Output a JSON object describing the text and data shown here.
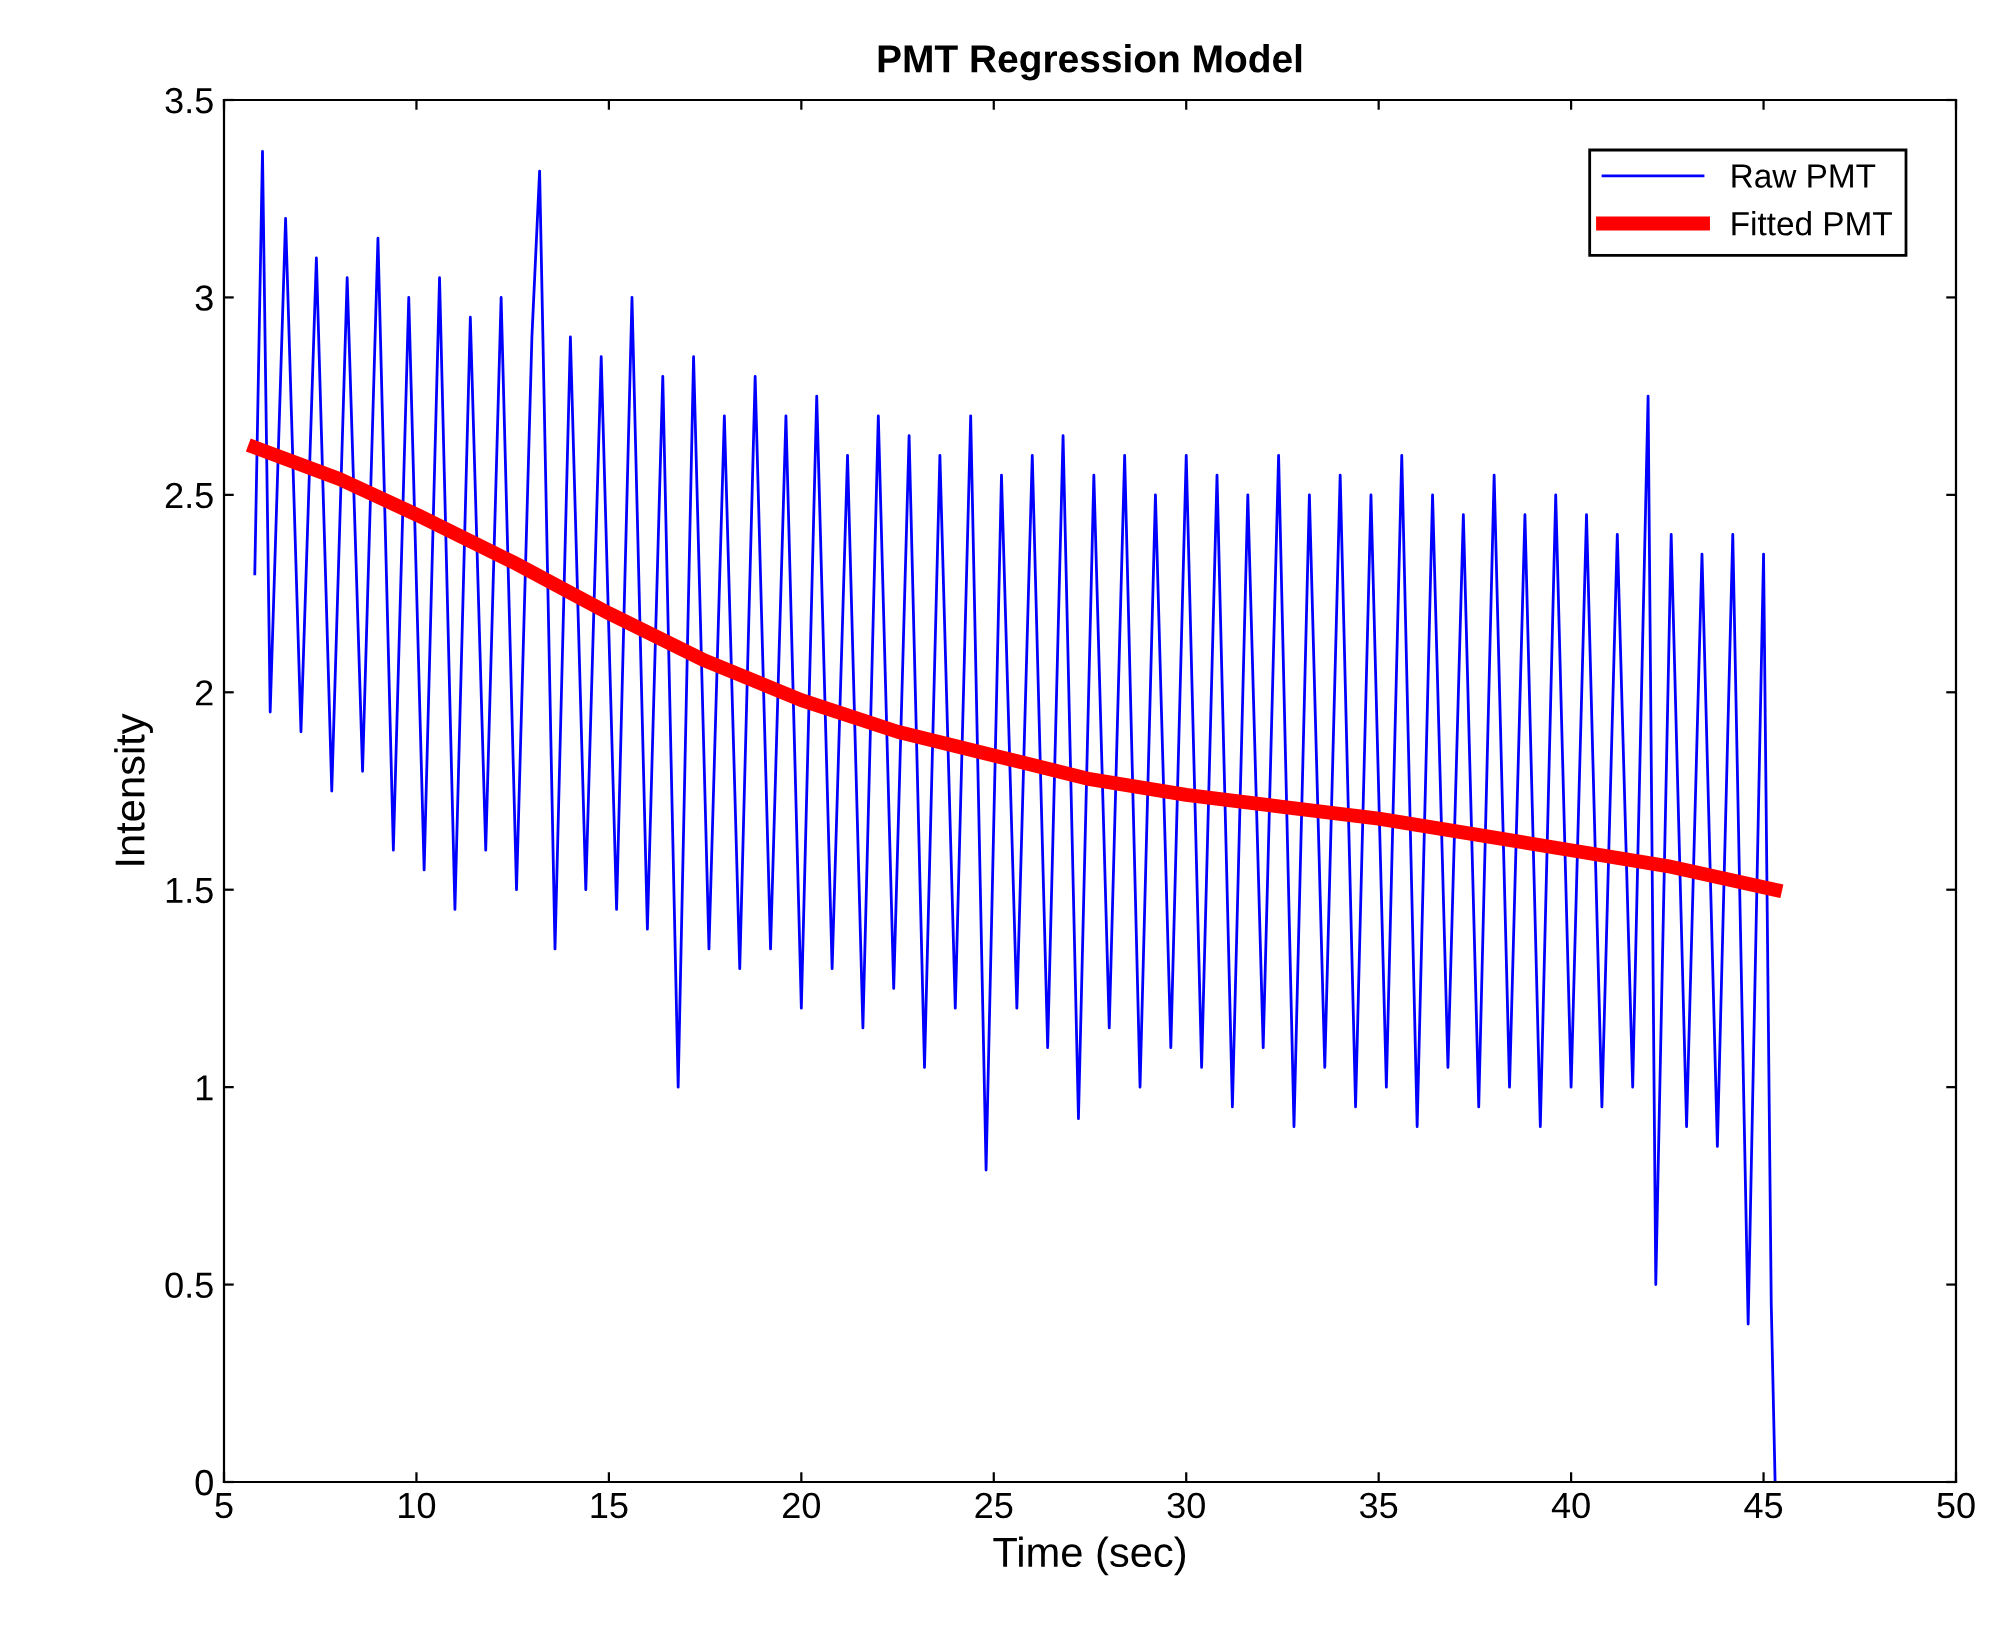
{
  "chart_data": {
    "type": "line",
    "title": "PMT Regression Model",
    "xlabel": "Time (sec)",
    "ylabel": "Intensity",
    "xlim": [
      5,
      50
    ],
    "xticks": [
      5,
      10,
      15,
      20,
      25,
      30,
      35,
      40,
      45,
      50
    ],
    "ylim": [
      0,
      3.5
    ],
    "yticks": [
      0,
      0.5,
      1,
      1.5,
      2,
      2.5,
      3,
      3.5
    ],
    "grid": false,
    "legend": "top right",
    "line_style": "solid",
    "marker": "none",
    "series": [
      {
        "name": "Raw PMT",
        "color": "#0000ff",
        "x": [
          5.8,
          6.0,
          6.2,
          6.6,
          7.0,
          7.4,
          7.8,
          8.2,
          8.6,
          9.0,
          9.4,
          9.8,
          10.2,
          10.6,
          11.0,
          11.4,
          11.8,
          12.2,
          12.6,
          13.0,
          13.2,
          13.6,
          14.0,
          14.4,
          14.8,
          15.2,
          15.6,
          16.0,
          16.4,
          16.8,
          17.2,
          17.6,
          18.0,
          18.4,
          18.8,
          19.2,
          19.6,
          20.0,
          20.4,
          20.8,
          21.2,
          21.6,
          22.0,
          22.4,
          22.8,
          23.2,
          23.6,
          24.0,
          24.4,
          24.8,
          25.2,
          25.6,
          26.0,
          26.4,
          26.8,
          27.2,
          27.6,
          28.0,
          28.4,
          28.8,
          29.2,
          29.6,
          30.0,
          30.4,
          30.8,
          31.2,
          31.6,
          32.0,
          32.4,
          32.8,
          33.2,
          33.6,
          34.0,
          34.4,
          34.8,
          35.2,
          35.6,
          36.0,
          36.4,
          36.8,
          37.2,
          37.6,
          38.0,
          38.4,
          38.8,
          39.2,
          39.6,
          40.0,
          40.4,
          40.8,
          41.2,
          41.6,
          42.0,
          42.2,
          42.6,
          43.0,
          43.4,
          43.8,
          44.2,
          44.6,
          45.0,
          45.2,
          45.3
        ],
        "values": [
          2.3,
          3.37,
          1.95,
          3.2,
          1.9,
          3.1,
          1.75,
          3.05,
          1.8,
          3.15,
          1.6,
          3.0,
          1.55,
          3.05,
          1.45,
          2.95,
          1.6,
          3.0,
          1.5,
          2.9,
          3.32,
          1.35,
          2.9,
          1.5,
          2.85,
          1.45,
          3.0,
          1.4,
          2.8,
          1.0,
          2.85,
          1.35,
          2.7,
          1.3,
          2.8,
          1.35,
          2.7,
          1.2,
          2.75,
          1.3,
          2.6,
          1.15,
          2.7,
          1.25,
          2.65,
          1.05,
          2.6,
          1.2,
          2.7,
          0.79,
          2.55,
          1.2,
          2.6,
          1.1,
          2.65,
          0.92,
          2.55,
          1.15,
          2.6,
          1.0,
          2.5,
          1.1,
          2.6,
          1.05,
          2.55,
          0.95,
          2.5,
          1.1,
          2.6,
          0.9,
          2.5,
          1.05,
          2.55,
          0.95,
          2.5,
          1.0,
          2.6,
          0.9,
          2.5,
          1.05,
          2.45,
          0.95,
          2.55,
          1.0,
          2.45,
          0.9,
          2.5,
          1.0,
          2.45,
          0.95,
          2.4,
          1.0,
          2.75,
          0.5,
          2.4,
          0.9,
          2.35,
          0.85,
          2.4,
          0.4,
          2.35,
          0.45,
          0.0
        ]
      },
      {
        "name": "Fitted PMT",
        "color": "#ff0000",
        "x": [
          5.8,
          8,
          10,
          12.5,
          15,
          17.5,
          20,
          22.5,
          25,
          27.5,
          30,
          32.5,
          35,
          37.5,
          40,
          42.5,
          45.3
        ],
        "values": [
          2.62,
          2.54,
          2.45,
          2.33,
          2.2,
          2.08,
          1.98,
          1.9,
          1.84,
          1.78,
          1.74,
          1.71,
          1.68,
          1.64,
          1.6,
          1.56,
          1.5
        ]
      }
    ]
  }
}
